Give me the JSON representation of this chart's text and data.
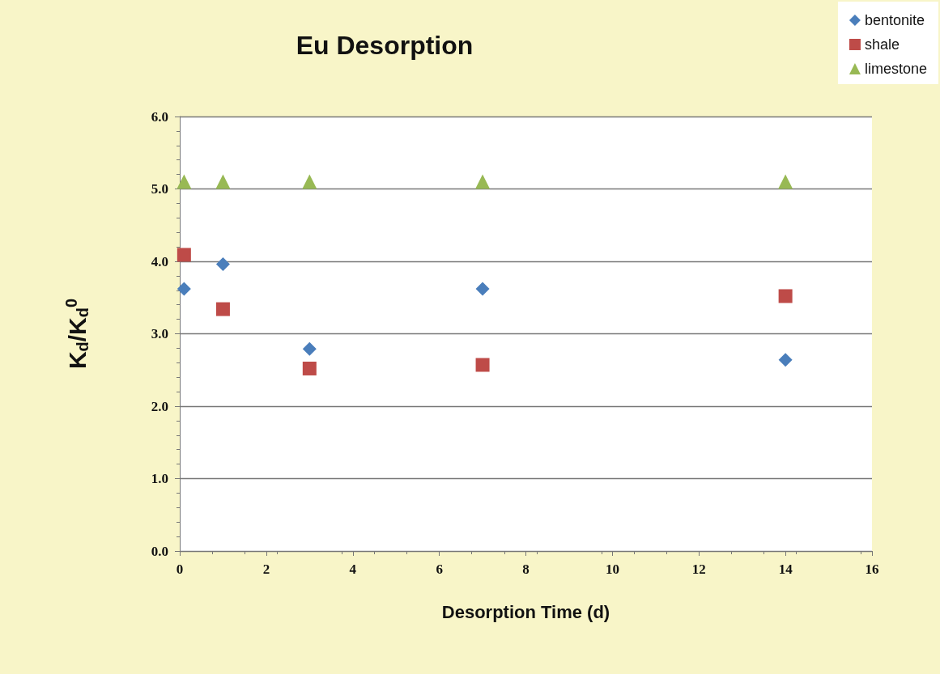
{
  "chart_data": {
    "type": "scatter",
    "title": "Eu Desorption",
    "xlabel": "Desorption Time (d)",
    "ylabel": "K$_{d}$/K$_{d}$$^{0}$",
    "x": [
      0.1,
      1,
      3,
      7,
      14
    ],
    "series": [
      {
        "name": "bentonite",
        "color": "#4a7ebb",
        "marker": "diamond",
        "values": [
          3.62,
          3.96,
          2.79,
          3.62,
          2.64
        ]
      },
      {
        "name": "shale",
        "color": "#be4b48",
        "marker": "square",
        "values": [
          4.09,
          3.34,
          2.52,
          2.57,
          3.52
        ]
      },
      {
        "name": "limestone",
        "color": "#98b954",
        "marker": "triangle",
        "values": [
          5.1,
          5.1,
          5.1,
          5.1,
          5.1
        ]
      }
    ],
    "xlim": [
      0,
      16
    ],
    "xticks": [
      0,
      2,
      4,
      6,
      8,
      10,
      12,
      14,
      16
    ],
    "ylim": [
      0,
      6
    ],
    "yticks": [
      {
        "value": 0,
        "label": "0.0"
      },
      {
        "value": 1,
        "label": "1.0"
      },
      {
        "value": 2,
        "label": "2.0"
      },
      {
        "value": 3,
        "label": "3.0"
      },
      {
        "value": 4,
        "label": "4.0"
      },
      {
        "value": 5,
        "label": "5.0"
      },
      {
        "value": 6,
        "label": "6.0"
      }
    ],
    "grid": "y",
    "legend": "top right"
  }
}
